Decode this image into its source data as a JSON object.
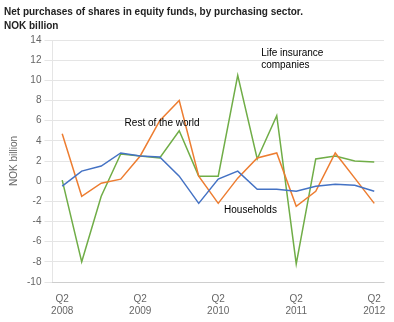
{
  "chart_data": {
    "type": "line",
    "title": "Net purchases of shares in equity funds, by purchasing sector.",
    "subtitle": "NOK billion",
    "y_label": "NOK billion",
    "categories": [
      "Q2\n2008",
      null,
      null,
      null,
      "Q2\n2009",
      null,
      null,
      null,
      "Q2\n2010",
      null,
      null,
      null,
      "Q2\n2011",
      null,
      null,
      null,
      "Q2\n2012"
    ],
    "series": [
      {
        "name": "Households",
        "color": "#4472C4",
        "values": [
          -0.5,
          1.0,
          1.5,
          2.8,
          2.5,
          2.4,
          0.5,
          -2.2,
          0.2,
          1.0,
          -0.8,
          -0.8,
          -1.0,
          -0.5,
          -0.3,
          -0.4,
          -1.0
        ]
      },
      {
        "name": "Rest of the world",
        "color": "#ED7D31",
        "values": [
          4.7,
          -1.5,
          -0.2,
          0.2,
          2.5,
          6.0,
          8.0,
          0.5,
          -2.2,
          0.3,
          2.3,
          2.8,
          -2.5,
          -1.0,
          2.8,
          0.3,
          -2.2
        ]
      },
      {
        "name": "Life insurance companies",
        "color": "#70AD47",
        "values": [
          0.1,
          -8.0,
          -1.5,
          2.7,
          2.5,
          2.3,
          5.0,
          0.5,
          0.5,
          10.5,
          2.2,
          6.5,
          -8.2,
          2.2,
          2.5,
          2.0,
          1.9
        ]
      }
    ],
    "annotations": [
      {
        "text": "Households",
        "x": 8.3,
        "y": -3.2
      },
      {
        "text": "Rest of the world",
        "x": 3.2,
        "y": 5.5
      },
      {
        "text": "Life insurance\ncompanies",
        "x": 10.2,
        "y": 11.2
      }
    ],
    "ylim": [
      -10,
      14
    ],
    "yticks": [
      -10,
      -8,
      -6,
      -4,
      -2,
      0,
      2,
      4,
      6,
      8,
      10,
      12,
      14
    ],
    "grid": true
  }
}
